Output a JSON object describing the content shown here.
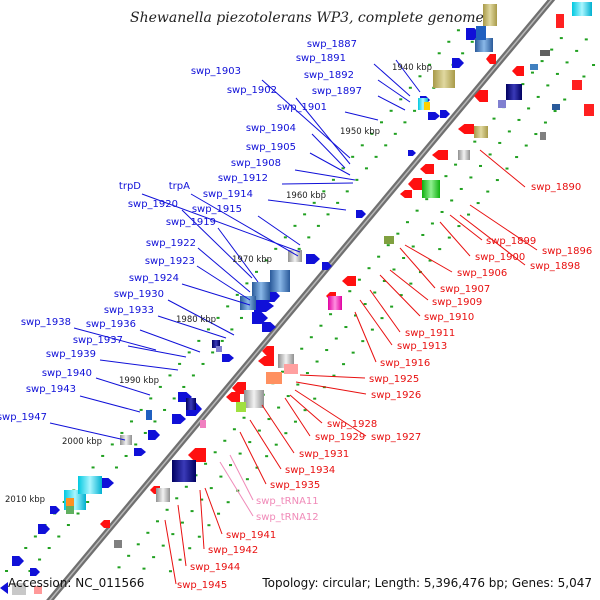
{
  "title": "Shewanella piezotolerans WP3, complete genome",
  "footer": {
    "accession": "Accession: NC_011566",
    "summary": "Topology: circular; Length: 5,396,476 bp; Genes: 5,047"
  },
  "colors": {
    "forward_label": "#1010d8",
    "reverse_label": "#e81010",
    "trna_label": "#f08ab8",
    "backbone": "#707070",
    "cds_forward": "#1010d8",
    "cds_reverse": "#ff1010"
  },
  "position_marks": [
    "1940 kbp",
    "1950 kbp",
    "1960 kbp",
    "1970 kbp",
    "1980 kbp",
    "1990 kbp",
    "2000 kbp",
    "2010 kbp"
  ],
  "forward_genes": [
    "swp_1887",
    "swp_1891",
    "swp_1892",
    "swp_1897",
    "swp_1901",
    "swp_1903",
    "swp_1902",
    "swp_1904",
    "swp_1905",
    "swp_1908",
    "swp_1912",
    "swp_1914",
    "swp_1915",
    "trpD",
    "trpA",
    "swp_1920",
    "swp_1919",
    "swp_1922",
    "swp_1923",
    "swp_1924",
    "swp_1930",
    "swp_1933",
    "swp_1938",
    "swp_1936",
    "swp_1937",
    "swp_1939",
    "swp_1940",
    "swp_1943",
    "swp_1947"
  ],
  "reverse_genes": [
    "swp_1890",
    "swp_1899",
    "swp_1896",
    "swp_1900",
    "swp_1898",
    "swp_1906",
    "swp_1907",
    "swp_1909",
    "swp_1910",
    "swp_1911",
    "swp_1913",
    "swp_1916",
    "swp_1925",
    "swp_1926",
    "swp_1928",
    "swp_1929",
    "swp_1927",
    "swp_1931",
    "swp_1934",
    "swp_1935",
    "swp_tRNA11",
    "swp_tRNA12",
    "swp_1941",
    "swp_1942",
    "swp_1944",
    "swp_1945"
  ]
}
